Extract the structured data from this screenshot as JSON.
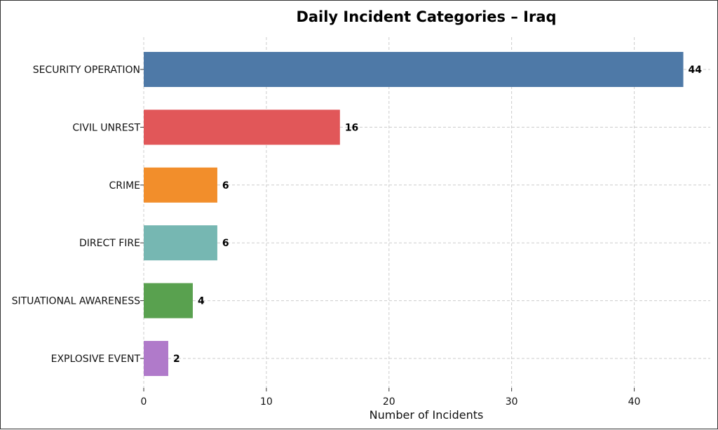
{
  "chart_data": {
    "type": "bar",
    "orientation": "horizontal",
    "title": "Daily Incident Categories – Iraq",
    "xlabel": "Number of Incidents",
    "ylabel": "",
    "categories": [
      "SECURITY OPERATION",
      "CIVIL UNREST",
      "CRIME",
      "DIRECT FIRE",
      "SITUATIONAL AWARENESS",
      "EXPLOSIVE EVENT"
    ],
    "values": [
      44,
      16,
      6,
      6,
      4,
      2
    ],
    "value_labels": [
      "44",
      "16",
      "6",
      "6",
      "4",
      "2"
    ],
    "colors": [
      "#4e79a7",
      "#e15759",
      "#f28e2b",
      "#76b7b2",
      "#59a14f",
      "#b07aca"
    ],
    "xlim": [
      0,
      46.2
    ],
    "xticks": [
      0,
      10,
      20,
      30,
      40
    ],
    "xtick_labels": [
      "0",
      "10",
      "20",
      "30",
      "40"
    ],
    "grid": true,
    "legend": "none"
  }
}
